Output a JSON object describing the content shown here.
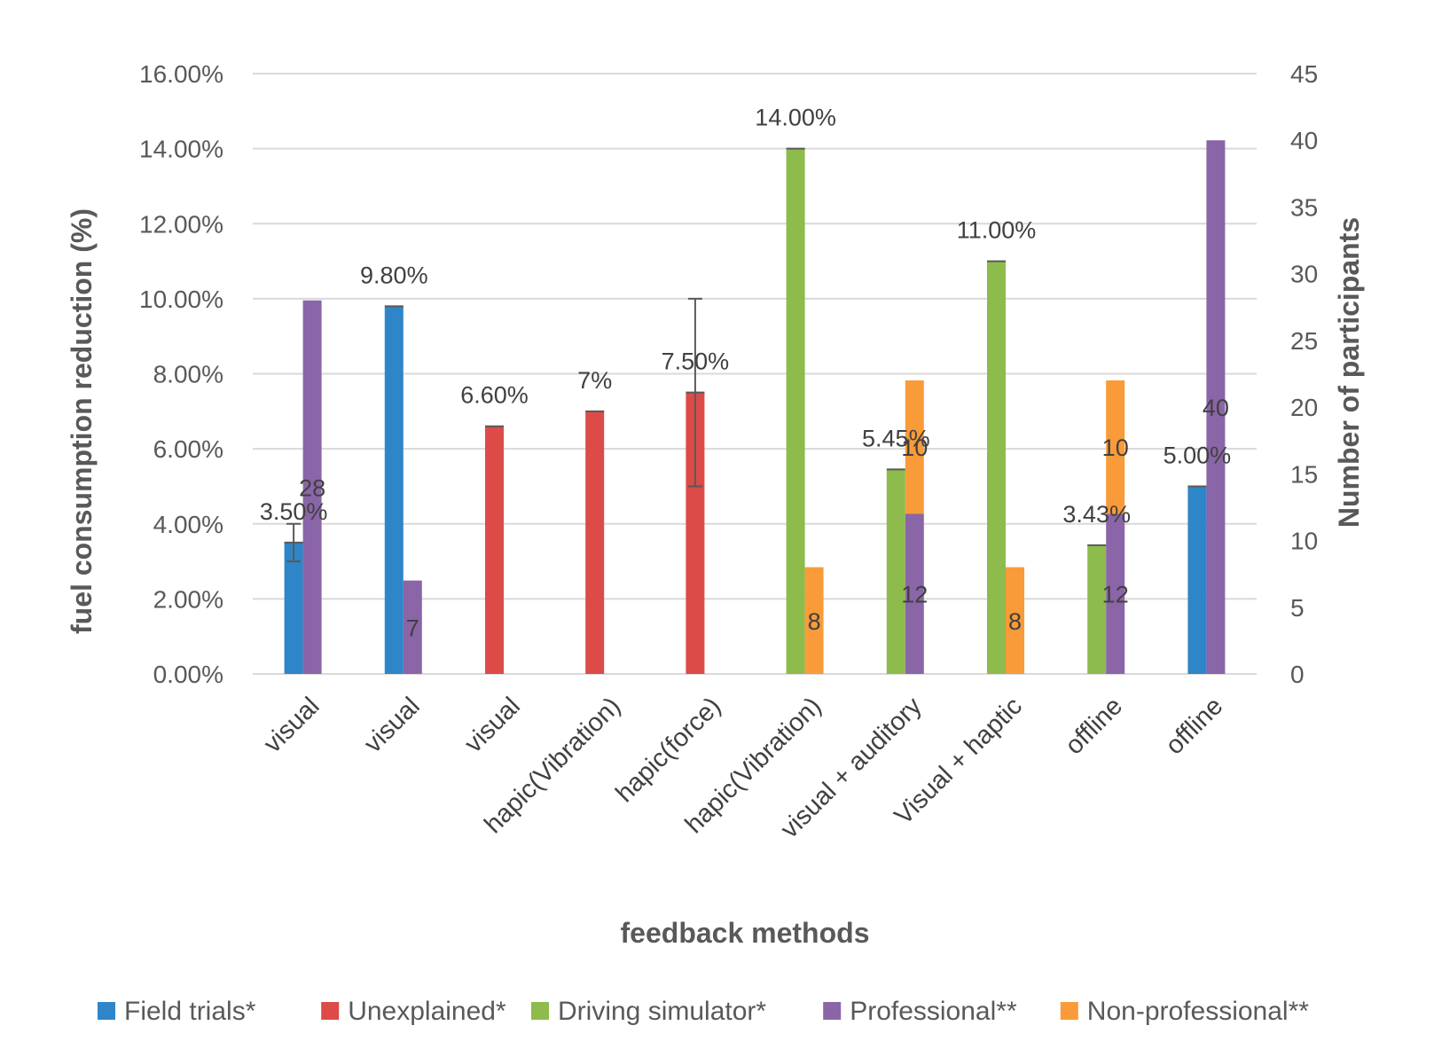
{
  "chart_data": {
    "type": "bar",
    "xlabel": "feedback methods",
    "ylabel": "fuel consumption reduction (%)",
    "ylabel_right": "Number of participants",
    "ylim": [
      0,
      0.16
    ],
    "ylim_right": [
      0,
      45
    ],
    "yticks_left": [
      "0.00%",
      "2.00%",
      "4.00%",
      "6.00%",
      "8.00%",
      "10.00%",
      "12.00%",
      "14.00%",
      "16.00%"
    ],
    "yticks_right": [
      "0",
      "5",
      "10",
      "15",
      "20",
      "25",
      "30",
      "35",
      "40",
      "45"
    ],
    "categories": [
      "visual",
      "visual",
      "visual",
      "hapic(Vibration)",
      "hapic(force)",
      "hapic(Vibration)",
      "visual + auditory",
      "Visual + haptic",
      "offline",
      "offline"
    ],
    "colors": {
      "Field trials*": "#2E86C8",
      "Unexplained*": "#DC4B48",
      "Driving simulator*": "#8DBB4C",
      "Professional**": "#8A65A8",
      "Non-professional**": "#F99B39"
    },
    "studies": [
      {
        "category_index": 0,
        "group": "Field trials*",
        "value": 0.035,
        "label": "3.50%",
        "error": [
          0.03,
          0.04
        ]
      },
      {
        "category_index": 1,
        "group": "Field trials*",
        "value": 0.098,
        "label": "9.80%"
      },
      {
        "category_index": 2,
        "group": "Unexplained*",
        "value": 0.066,
        "label": "6.60%"
      },
      {
        "category_index": 3,
        "group": "Unexplained*",
        "value": 0.07,
        "label": "7%"
      },
      {
        "category_index": 4,
        "group": "Unexplained*",
        "value": 0.075,
        "label": "7.50%",
        "error": [
          0.05,
          0.1
        ]
      },
      {
        "category_index": 5,
        "group": "Driving simulator*",
        "value": 0.14,
        "label": "14.00%"
      },
      {
        "category_index": 6,
        "group": "Driving simulator*",
        "value": 0.0545,
        "label": "5.45%"
      },
      {
        "category_index": 7,
        "group": "Driving simulator*",
        "value": 0.11,
        "label": "11.00%"
      },
      {
        "category_index": 8,
        "group": "Driving simulator*",
        "value": 0.0343,
        "label": "3.43%"
      },
      {
        "category_index": 9,
        "group": "Field trials*",
        "value": 0.05,
        "label": "5.00%"
      }
    ],
    "participants": [
      {
        "category_index": 0,
        "segments": [
          {
            "group": "Professional**",
            "value": 28,
            "label": "28"
          }
        ]
      },
      {
        "category_index": 1,
        "segments": [
          {
            "group": "Professional**",
            "value": 7,
            "label": "7"
          }
        ]
      },
      {
        "category_index": 5,
        "segments": [
          {
            "group": "Non-professional**",
            "value": 8,
            "label": "8"
          }
        ]
      },
      {
        "category_index": 6,
        "segments": [
          {
            "group": "Professional**",
            "value": 12,
            "label": "12"
          },
          {
            "group": "Non-professional**",
            "value": 10,
            "label": "10"
          }
        ]
      },
      {
        "category_index": 7,
        "segments": [
          {
            "group": "Non-professional**",
            "value": 8,
            "label": "8"
          }
        ]
      },
      {
        "category_index": 8,
        "segments": [
          {
            "group": "Professional**",
            "value": 12,
            "label": "12"
          },
          {
            "group": "Non-professional**",
            "value": 10,
            "label": "10"
          }
        ]
      },
      {
        "category_index": 9,
        "segments": [
          {
            "group": "Professional**",
            "value": 40,
            "label": "40"
          }
        ]
      }
    ],
    "legend": [
      "Field trials*",
      "Unexplained*",
      "Driving simulator*",
      "Professional**",
      "Non-professional**"
    ],
    "legend_position": "bottom",
    "grid": true
  }
}
